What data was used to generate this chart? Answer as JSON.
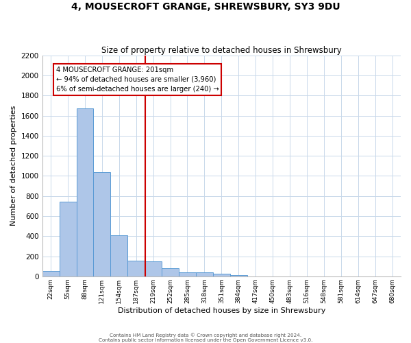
{
  "title": "4, MOUSECROFT GRANGE, SHREWSBURY, SY3 9DU",
  "subtitle": "Size of property relative to detached houses in Shrewsbury",
  "xlabel": "Distribution of detached houses by size in Shrewsbury",
  "ylabel": "Number of detached properties",
  "bar_color": "#aec6e8",
  "bar_edge_color": "#5b9bd5",
  "background_color": "#ffffff",
  "grid_color": "#c8d8ea",
  "bin_labels": [
    "22sqm",
    "55sqm",
    "88sqm",
    "121sqm",
    "154sqm",
    "187sqm",
    "219sqm",
    "252sqm",
    "285sqm",
    "318sqm",
    "351sqm",
    "384sqm",
    "417sqm",
    "450sqm",
    "483sqm",
    "516sqm",
    "548sqm",
    "581sqm",
    "614sqm",
    "647sqm",
    "680sqm"
  ],
  "bar_values": [
    50,
    745,
    1670,
    1035,
    410,
    155,
    150,
    80,
    40,
    40,
    25,
    15,
    0,
    0,
    0,
    0,
    0,
    0,
    0,
    0,
    0
  ],
  "ylim": [
    0,
    2200
  ],
  "yticks": [
    0,
    200,
    400,
    600,
    800,
    1000,
    1200,
    1400,
    1600,
    1800,
    2000,
    2200
  ],
  "vline_x": 5.55,
  "vline_color": "#cc0000",
  "annotation_box_line1": "4 MOUSECROFT GRANGE: 201sqm",
  "annotation_box_line2": "← 94% of detached houses are smaller (3,960)",
  "annotation_box_line3": "6% of semi-detached houses are larger (240) →",
  "annotation_box_color": "#cc0000",
  "footer_line1": "Contains HM Land Registry data © Crown copyright and database right 2024.",
  "footer_line2": "Contains public sector information licensed under the Open Government Licence v3.0.",
  "num_bins": 21
}
